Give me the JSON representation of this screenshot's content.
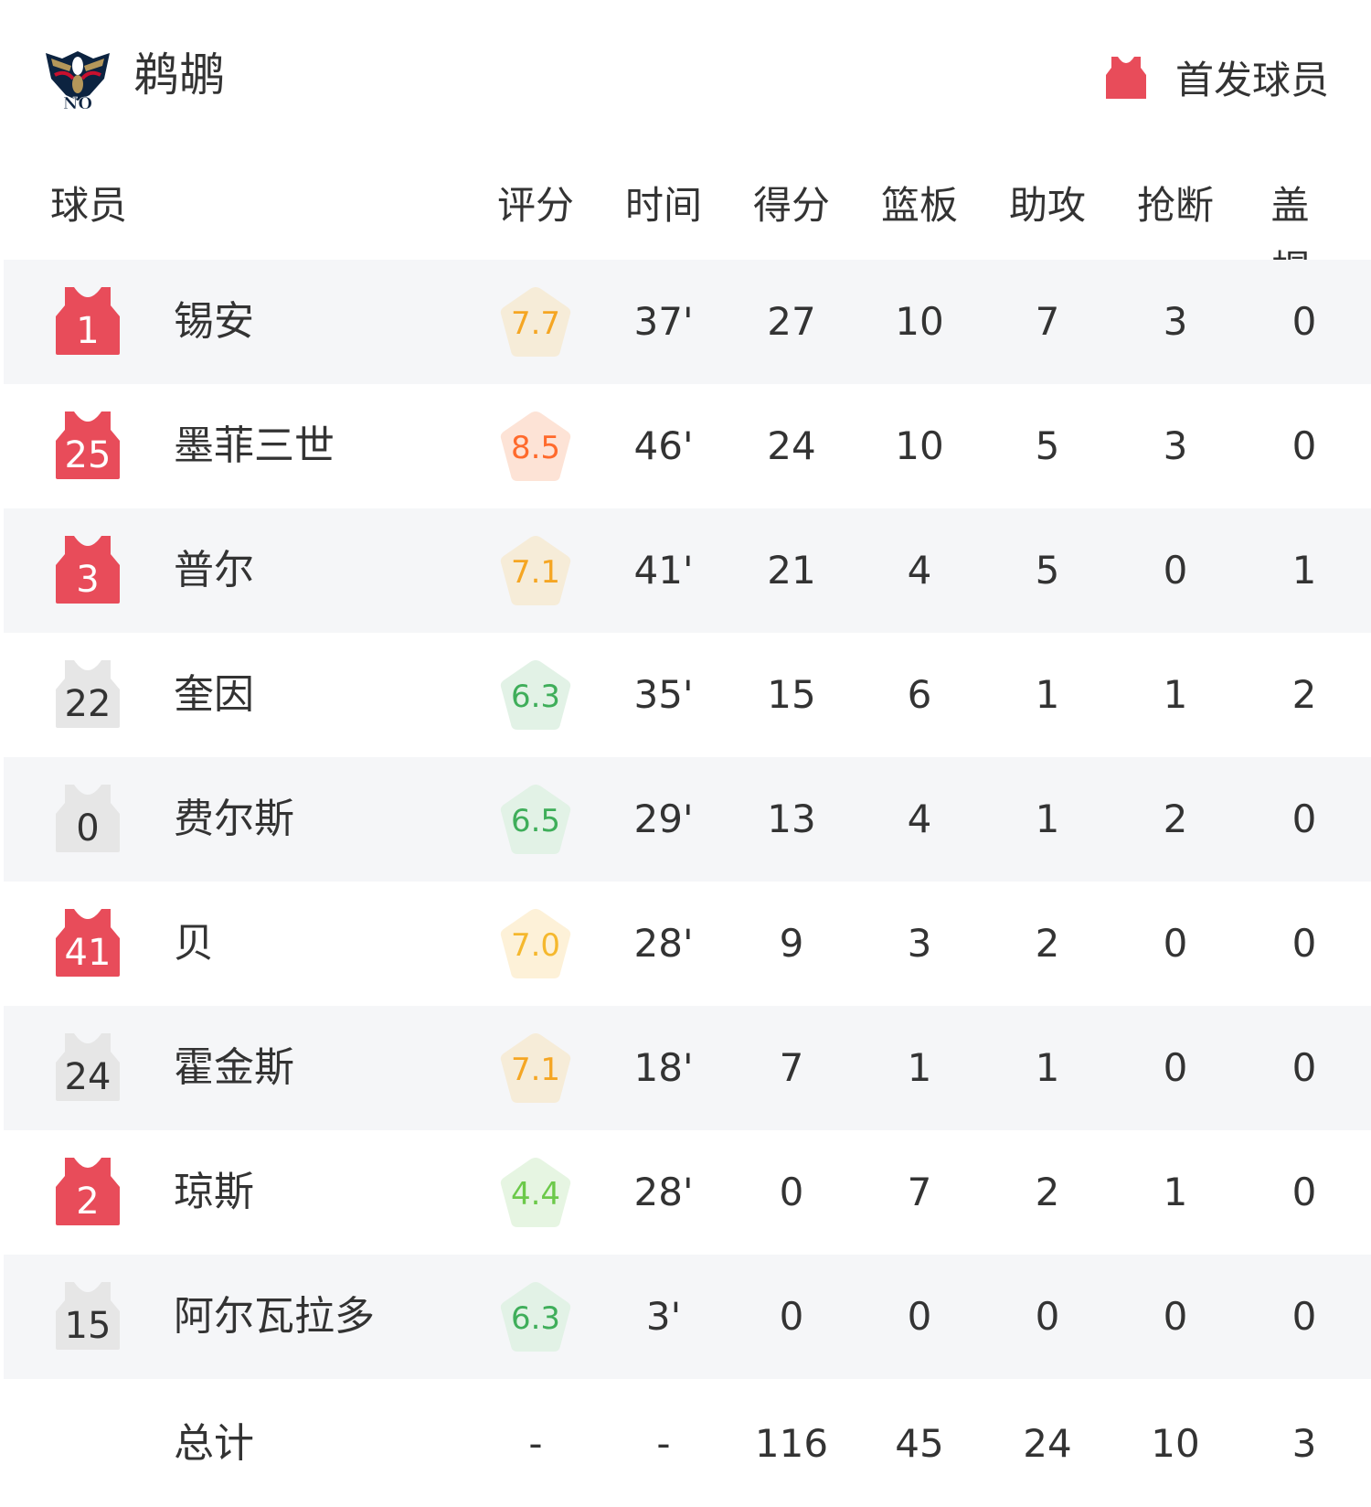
{
  "header": {
    "team_name": "鹈鹕",
    "logo_text": "NO",
    "legend_label": "首发球员",
    "legend_icon": "jersey-icon",
    "starter_color": "#e84c5a"
  },
  "columns": [
    "球员",
    "评分",
    "时间",
    "得分",
    "篮板",
    "助攻",
    "抢断",
    "盖帽"
  ],
  "players": [
    {
      "number": "1",
      "name": "锡安",
      "starter": true,
      "rating": "7.7",
      "rating_color": "#f5a623",
      "rating_bg": "#f6ecd8",
      "min": "37'",
      "pts": "27",
      "reb": "10",
      "ast": "7",
      "stl": "3",
      "blk": "0"
    },
    {
      "number": "25",
      "name": "墨菲三世",
      "starter": true,
      "rating": "8.5",
      "rating_color": "#ff6a2c",
      "rating_bg": "#fde3d6",
      "min": "46'",
      "pts": "24",
      "reb": "10",
      "ast": "5",
      "stl": "3",
      "blk": "0"
    },
    {
      "number": "3",
      "name": "普尔",
      "starter": true,
      "rating": "7.1",
      "rating_color": "#f5a623",
      "rating_bg": "#f6ecd8",
      "min": "41'",
      "pts": "21",
      "reb": "4",
      "ast": "5",
      "stl": "0",
      "blk": "1"
    },
    {
      "number": "22",
      "name": "奎因",
      "starter": false,
      "rating": "6.3",
      "rating_color": "#3fae5a",
      "rating_bg": "#e2f2e6",
      "min": "35'",
      "pts": "15",
      "reb": "6",
      "ast": "1",
      "stl": "1",
      "blk": "2"
    },
    {
      "number": "0",
      "name": "费尔斯",
      "starter": false,
      "rating": "6.5",
      "rating_color": "#3fae5a",
      "rating_bg": "#e2f2e6",
      "min": "29'",
      "pts": "13",
      "reb": "4",
      "ast": "1",
      "stl": "2",
      "blk": "0"
    },
    {
      "number": "41",
      "name": "贝",
      "starter": true,
      "rating": "7.0",
      "rating_color": "#f5b82e",
      "rating_bg": "#fdf1d8",
      "min": "28'",
      "pts": "9",
      "reb": "3",
      "ast": "2",
      "stl": "0",
      "blk": "0"
    },
    {
      "number": "24",
      "name": "霍金斯",
      "starter": false,
      "rating": "7.1",
      "rating_color": "#f5a623",
      "rating_bg": "#f6ecd8",
      "min": "18'",
      "pts": "7",
      "reb": "1",
      "ast": "1",
      "stl": "0",
      "blk": "0"
    },
    {
      "number": "2",
      "name": "琼斯",
      "starter": true,
      "rating": "4.4",
      "rating_color": "#6cc94a",
      "rating_bg": "#e6f5e2",
      "min": "28'",
      "pts": "0",
      "reb": "7",
      "ast": "2",
      "stl": "1",
      "blk": "0"
    },
    {
      "number": "15",
      "name": "阿尔瓦拉多",
      "starter": false,
      "rating": "6.3",
      "rating_color": "#3fae5a",
      "rating_bg": "#e2f2e6",
      "min": "3'",
      "pts": "0",
      "reb": "0",
      "ast": "0",
      "stl": "0",
      "blk": "0"
    }
  ],
  "totals": {
    "label": "总计",
    "rating": "-",
    "min": "-",
    "pts": "116",
    "reb": "45",
    "ast": "24",
    "stl": "10",
    "blk": "3"
  }
}
